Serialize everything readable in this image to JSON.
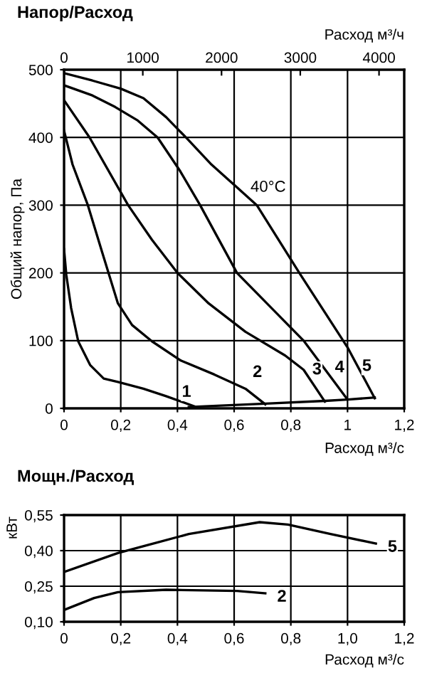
{
  "chart_data": [
    {
      "type": "line",
      "title": "Напор/Расход",
      "xlabel": "Расход м³/с",
      "ylabel": "Общий напор, Па",
      "x2label": "Расход м³/ч",
      "xlim": [
        0,
        1.2
      ],
      "xticks": [
        0,
        {
          "value": 0.2,
          "label": "0,2"
        },
        {
          "value": 0.4,
          "label": "0,4"
        },
        {
          "value": 0.6,
          "label": "0,6"
        },
        {
          "value": 0.8,
          "label": "0,8"
        },
        1,
        {
          "value": 1.2,
          "label": "1,2"
        }
      ],
      "x2lim": [
        0,
        4320
      ],
      "x2ticks": [
        0,
        1000,
        2000,
        3000,
        4000
      ],
      "ylim": [
        0,
        500
      ],
      "yticks": [
        0,
        100,
        200,
        300,
        400,
        500
      ],
      "grid": true,
      "legend": false,
      "annotations": [
        "40°C"
      ],
      "series": [
        {
          "name": "1",
          "color": "#000000",
          "x": [
            0,
            0.008,
            0.025,
            0.05,
            0.092,
            0.14,
            0.19,
            0.28,
            0.36,
            0.46
          ],
          "values": [
            235,
            197,
            148,
            99,
            64,
            44,
            39,
            29,
            18,
            3
          ]
        },
        {
          "name": "2",
          "color": "#000000",
          "x": [
            0,
            0.03,
            0.084,
            0.134,
            0.19,
            0.24,
            0.31,
            0.41,
            0.53,
            0.64,
            0.71
          ],
          "values": [
            410,
            360,
            300,
            231,
            155,
            123,
            99,
            71,
            50,
            29,
            6
          ]
        },
        {
          "name": "3",
          "color": "#000000",
          "x": [
            0,
            0.09,
            0.226,
            0.31,
            0.4,
            0.51,
            0.64,
            0.78,
            0.845,
            0.92
          ],
          "values": [
            455,
            400,
            300,
            249,
            200,
            155,
            113,
            78,
            57,
            10
          ]
        },
        {
          "name": "4",
          "color": "#000000",
          "x": [
            0,
            0.1,
            0.18,
            0.26,
            0.33,
            0.41,
            0.48,
            0.61,
            0.845,
            1.0
          ],
          "values": [
            477,
            462,
            445,
            425,
            400,
            350,
            300,
            200,
            100,
            13
          ]
        },
        {
          "name": "5",
          "color": "#000000",
          "x": [
            0,
            0.1,
            0.2,
            0.28,
            0.36,
            0.43,
            0.52,
            0.6,
            0.68,
            0.83,
            1.0,
            1.096
          ],
          "values": [
            495,
            484,
            472,
            458,
            430,
            400,
            360,
            330,
            300,
            200,
            90,
            15
          ]
        },
        {
          "color": "#000000",
          "x": [
            0.44,
            0.71,
            0.92,
            1.0,
            1.096
          ],
          "values": [
            2,
            7,
            11,
            13,
            16
          ]
        }
      ]
    },
    {
      "type": "line",
      "title": "Мощн./Расход",
      "xlabel": "Расход м³/с",
      "ylabel": "кВт",
      "xlim": [
        0,
        1.2
      ],
      "xticks": [
        0,
        {
          "value": 0.2,
          "label": "0,2"
        },
        {
          "value": 0.4,
          "label": "0,4"
        },
        {
          "value": 0.6,
          "label": "0,6"
        },
        {
          "value": 0.8,
          "label": "0,8"
        },
        {
          "value": 1.0,
          "label": "1,0"
        },
        {
          "value": 1.2,
          "label": "1,2"
        }
      ],
      "ylim": [
        0.1,
        0.55
      ],
      "yticks": [
        {
          "value": 0.1,
          "label": "0,10"
        },
        {
          "value": 0.25,
          "label": "0,25"
        },
        {
          "value": 0.4,
          "label": "0,40"
        },
        {
          "value": 0.55,
          "label": "0,55"
        }
      ],
      "grid": true,
      "legend": false,
      "series": [
        {
          "name": "5",
          "color": "#000000",
          "x": [
            0,
            0.19,
            0.44,
            0.69,
            0.79,
            0.94,
            1.1
          ],
          "values": [
            0.31,
            0.39,
            0.47,
            0.52,
            0.51,
            0.47,
            0.43
          ]
        },
        {
          "name": "2",
          "color": "#000000",
          "x": [
            0,
            0.106,
            0.19,
            0.36,
            0.61,
            0.71
          ],
          "values": [
            0.15,
            0.2,
            0.225,
            0.235,
            0.23,
            0.22
          ]
        }
      ]
    }
  ]
}
